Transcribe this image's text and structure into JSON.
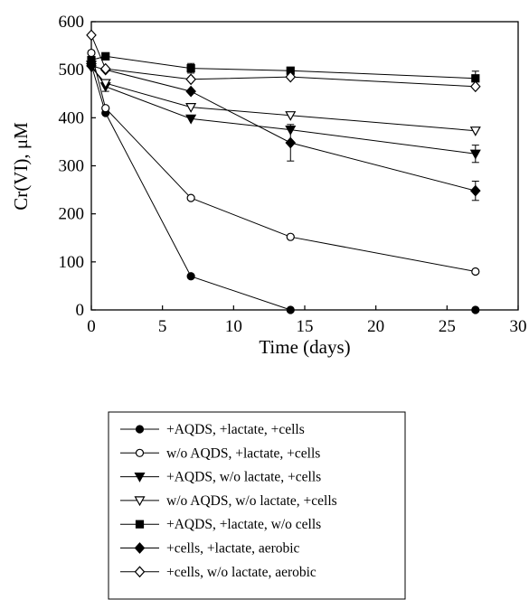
{
  "chart_data": {
    "type": "line",
    "title": "",
    "xlabel": "Time (days)",
    "ylabel": "Cr(VI), μM",
    "xlim": [
      0,
      30
    ],
    "ylim": [
      0,
      600
    ],
    "xticks": [
      0,
      5,
      10,
      15,
      20,
      25,
      30
    ],
    "yticks": [
      0,
      100,
      200,
      300,
      400,
      500,
      600
    ],
    "grid": false,
    "legend_position": "below",
    "series": [
      {
        "name": "+AQDS, +lactate, +cells",
        "marker": "circle-filled",
        "points": [
          [
            0,
            510
          ],
          [
            1,
            410
          ],
          [
            7,
            70
          ],
          [
            14,
            0
          ],
          [
            27,
            0
          ]
        ],
        "errors": [
          0,
          0,
          0,
          0,
          0
        ]
      },
      {
        "name": "w/o AQDS, +lactate, +cells",
        "marker": "circle-open",
        "points": [
          [
            0,
            535
          ],
          [
            1,
            420
          ],
          [
            7,
            233
          ],
          [
            14,
            152
          ],
          [
            27,
            80
          ]
        ],
        "errors": [
          0,
          0,
          0,
          0,
          0
        ]
      },
      {
        "name": "+AQDS, w/o lactate, +cells",
        "marker": "triangle-down-filled",
        "points": [
          [
            0,
            510
          ],
          [
            1,
            465
          ],
          [
            7,
            398
          ],
          [
            14,
            375
          ],
          [
            27,
            325
          ]
        ],
        "errors": [
          0,
          10,
          0,
          0,
          18
        ]
      },
      {
        "name": "w/o AQDS, w/o lactate, +cells",
        "marker": "triangle-down-open",
        "points": [
          [
            0,
            505
          ],
          [
            1,
            472
          ],
          [
            7,
            422
          ],
          [
            14,
            405
          ],
          [
            27,
            373
          ]
        ],
        "errors": [
          0,
          0,
          0,
          0,
          0
        ]
      },
      {
        "name": "+AQDS, +lactate, w/o cells",
        "marker": "square-filled",
        "points": [
          [
            0,
            520
          ],
          [
            1,
            528
          ],
          [
            7,
            503
          ],
          [
            14,
            498
          ],
          [
            27,
            482
          ]
        ],
        "errors": [
          0,
          0,
          10,
          0,
          15
        ]
      },
      {
        "name": "+cells, +lactate, aerobic",
        "marker": "diamond-filled",
        "points": [
          [
            0,
            508
          ],
          [
            1,
            500
          ],
          [
            7,
            455
          ],
          [
            14,
            348
          ],
          [
            27,
            248
          ]
        ],
        "errors": [
          0,
          0,
          0,
          38,
          20
        ]
      },
      {
        "name": "+cells, w/o lactate, aerobic",
        "marker": "diamond-open",
        "points": [
          [
            0,
            572
          ],
          [
            1,
            502
          ],
          [
            7,
            480
          ],
          [
            14,
            485
          ],
          [
            27,
            465
          ]
        ],
        "errors": [
          0,
          0,
          0,
          0,
          0
        ]
      }
    ]
  }
}
